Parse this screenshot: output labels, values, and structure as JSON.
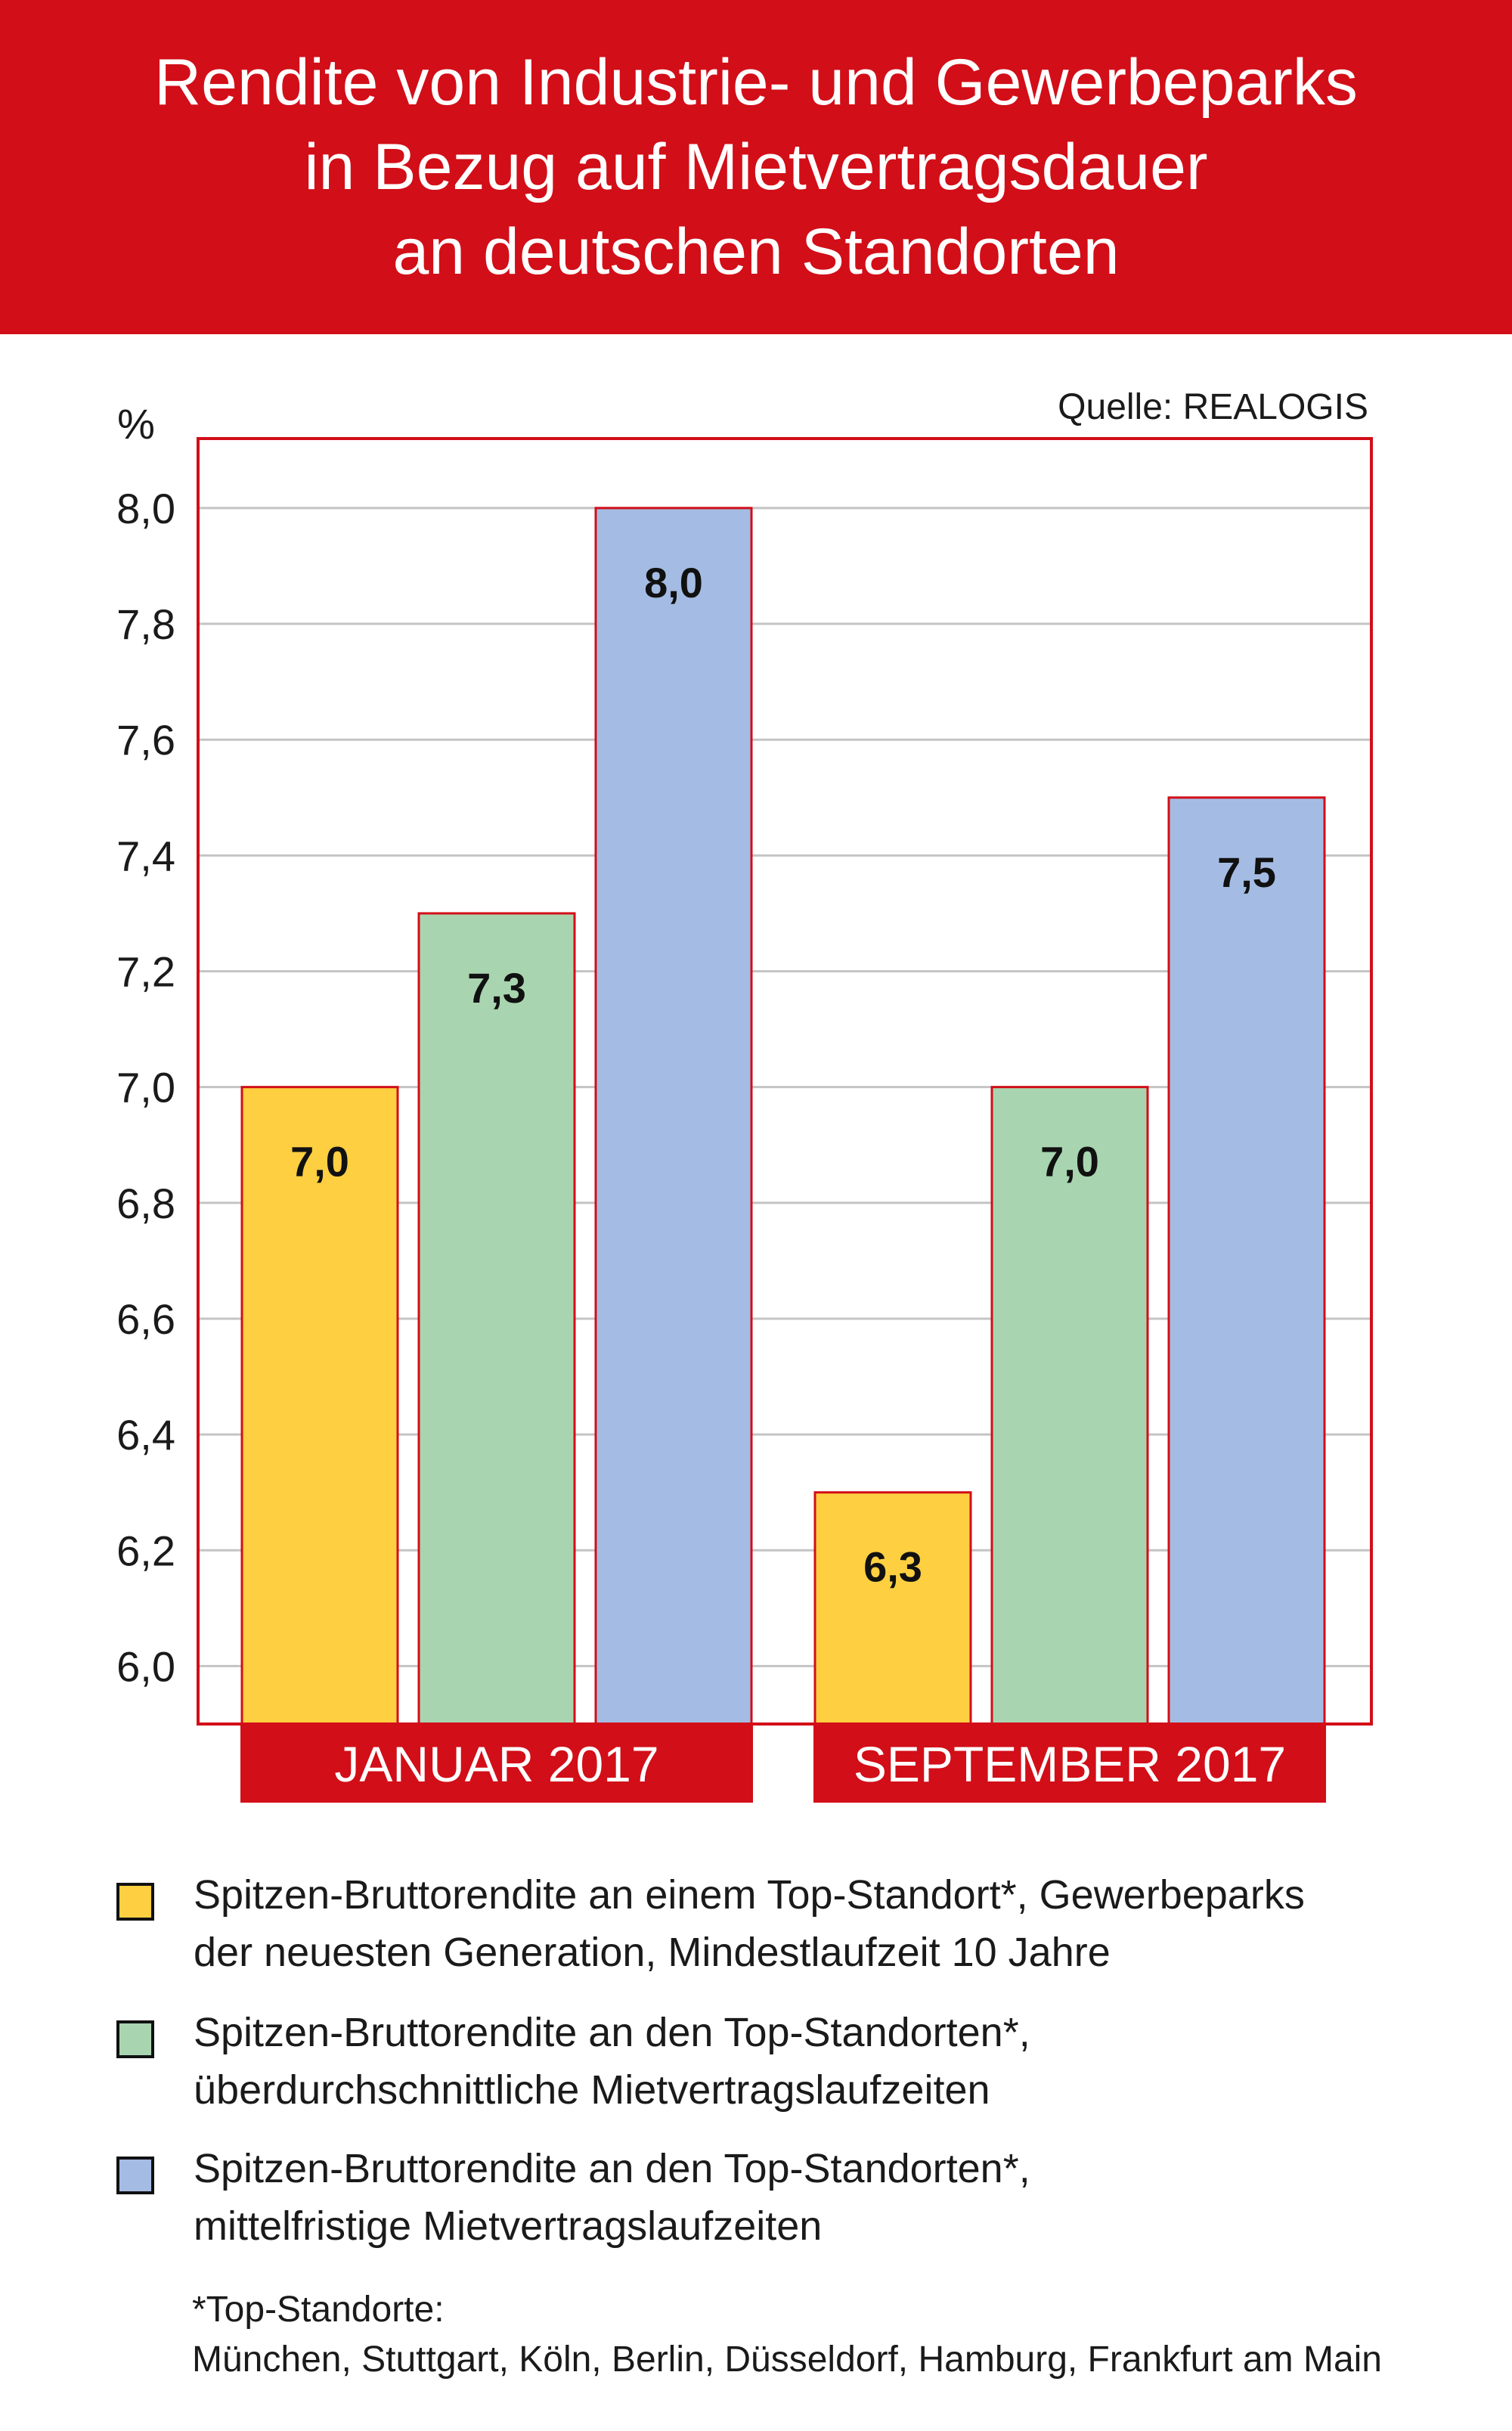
{
  "header": {
    "title_lines": [
      "Rendite von Industrie- und Gewerbeparks",
      "in Bezug auf Mietvertragsdauer",
      "an deutschen Standorten"
    ]
  },
  "source": "Quelle: REALOGIS",
  "chart_data": {
    "type": "bar",
    "title": "Rendite von Industrie- und Gewerbeparks in Bezug auf Mietvertragsdauer an deutschen Standorten",
    "ylabel": "%",
    "ylim": [
      5.9,
      8.12
    ],
    "yticks": [
      6.0,
      6.2,
      6.4,
      6.6,
      6.8,
      7.0,
      7.2,
      7.4,
      7.6,
      7.8,
      8.0
    ],
    "ytick_labels": [
      "6,0",
      "6,2",
      "6,4",
      "6,6",
      "6,8",
      "7,0",
      "7,2",
      "7,4",
      "7,6",
      "7,8",
      "8,0"
    ],
    "grid": true,
    "categories": [
      "JANUAR 2017",
      "SEPTEMBER 2017"
    ],
    "series": [
      {
        "name": "Spitzen-Bruttorendite an einem Top-Standort*, Gewerbeparks der neuesten Generation, Mindestlaufzeit 10 Jahre",
        "values": [
          7.0,
          6.3
        ],
        "labels": [
          "7,0",
          "6,3"
        ],
        "color": "#fdcf41"
      },
      {
        "name": "Spitzen-Bruttorendite an den Top-Standorten*, überdurchschnittliche Mietvertragslaufzeiten",
        "values": [
          7.3,
          7.0
        ],
        "labels": [
          "7,3",
          "7,0"
        ],
        "color": "#a8d5b0"
      },
      {
        "name": "Spitzen-Bruttorendite an den Top-Standorten*, mittelfristige Mietvertragslaufzeiten",
        "values": [
          8.0,
          7.5
        ],
        "labels": [
          "8,0",
          "7,5"
        ],
        "color": "#a4bce3"
      }
    ],
    "colors": {
      "frame": "#d20e18",
      "grid": "#c4c4c4",
      "category_box": "#d20e18",
      "category_text": "#ffffff"
    },
    "legend_position": "bottom"
  },
  "legend": [
    {
      "lines": [
        "Spitzen-Bruttorendite an einem Top-Standort*, Gewerbeparks",
        "der neuesten Generation, Mindestlaufzeit 10 Jahre"
      ],
      "color": "#fdcf41"
    },
    {
      "lines": [
        "Spitzen-Bruttorendite an den Top-Standorten*,",
        "überdurchschnittliche Mietvertragslaufzeiten"
      ],
      "color": "#a8d5b0"
    },
    {
      "lines": [
        "Spitzen-Bruttorendite an den Top-Standorten*,",
        "mittelfristige Mietvertragslaufzeiten"
      ],
      "color": "#a4bce3"
    }
  ],
  "footnote": {
    "lines": [
      "*Top-Standorte:",
      "München, Stuttgart, Köln, Berlin, Düsseldorf, Hamburg, Frankfurt am Main"
    ]
  }
}
